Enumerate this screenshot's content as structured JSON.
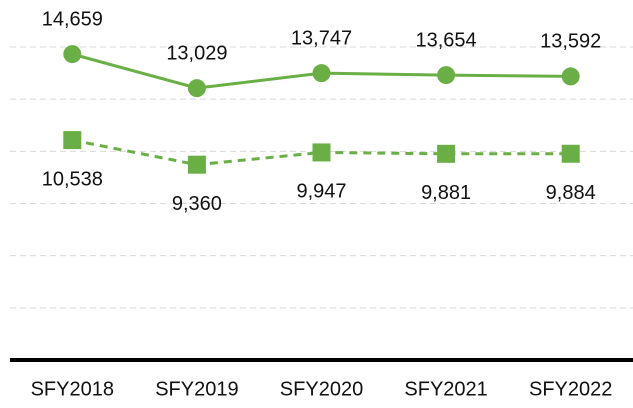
{
  "chart_data": {
    "type": "line",
    "categories": [
      "SFY2018",
      "SFY2019",
      "SFY2020",
      "SFY2021",
      "SFY2022"
    ],
    "series": [
      {
        "color": "#6aaf45",
        "line_style": "solid",
        "marker": "circle",
        "label_position": "above",
        "values": [
          14659,
          13029,
          13747,
          13654,
          13592
        ],
        "value_labels": [
          "14,659",
          "13,029",
          "13,747",
          "13,654",
          "13,592"
        ]
      },
      {
        "color": "#6aaf45",
        "line_style": "dashed",
        "marker": "square",
        "label_position": "below",
        "values": [
          10538,
          9360,
          9947,
          9881,
          9884
        ],
        "value_labels": [
          "10,538",
          "9,360",
          "9,947",
          "9,881",
          "9,884"
        ]
      }
    ],
    "ylim": [
      0,
      15000
    ],
    "yticks": [
      2500,
      5000,
      7500,
      10000,
      12500,
      15000
    ],
    "grid": true
  }
}
